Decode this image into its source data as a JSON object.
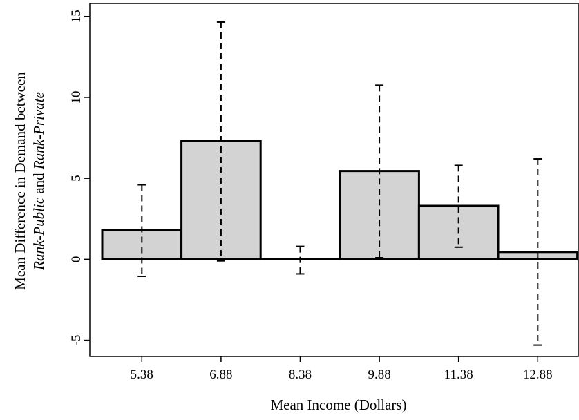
{
  "chart_data": {
    "type": "bar",
    "title": "",
    "xlabel": "Mean Income (Dollars)",
    "ylabel": {
      "line1": "Mean Difference in Demand between",
      "line2_italic_a": "Rank-Public",
      "line2_mid": " and ",
      "line2_italic_b": "Rank-Private"
    },
    "categories": [
      "5.38",
      "6.88",
      "8.38",
      "9.88",
      "11.38",
      "12.88"
    ],
    "values": [
      1.8,
      7.3,
      0.0,
      5.45,
      3.3,
      0.45
    ],
    "error_low": [
      -1.05,
      -0.1,
      -0.9,
      0.1,
      0.75,
      -5.3
    ],
    "error_high": [
      4.6,
      14.65,
      0.8,
      10.75,
      5.8,
      6.2
    ],
    "ylim": [
      -6,
      15.8
    ],
    "yticks": [
      "-5",
      "0",
      "5",
      "10",
      "15"
    ],
    "grid": false,
    "colors": {
      "bar_fill": "#d3d3d3",
      "bar_stroke": "#000000"
    }
  }
}
